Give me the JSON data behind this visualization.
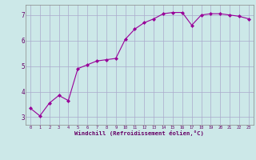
{
  "x": [
    0,
    1,
    2,
    3,
    4,
    5,
    6,
    7,
    8,
    9,
    10,
    11,
    12,
    13,
    14,
    15,
    16,
    17,
    18,
    19,
    20,
    21,
    22,
    23
  ],
  "y": [
    3.35,
    3.05,
    3.55,
    3.85,
    3.65,
    4.9,
    5.05,
    5.2,
    5.25,
    5.3,
    6.05,
    6.45,
    6.7,
    6.85,
    7.05,
    7.1,
    7.1,
    6.6,
    7.0,
    7.05,
    7.05,
    7.0,
    6.95,
    6.85
  ],
  "line_color": "#990099",
  "marker": "D",
  "markersize": 2.0,
  "linewidth": 0.8,
  "bg_color": "#cce8e8",
  "grid_color": "#aaaacc",
  "xlabel": "Windchill (Refroidissement éolien,°C)",
  "xlabel_color": "#660066",
  "tick_color": "#660066",
  "xlim": [
    -0.5,
    23.5
  ],
  "ylim": [
    2.7,
    7.4
  ],
  "yticks": [
    3,
    4,
    5,
    6,
    7
  ],
  "xticks": [
    0,
    1,
    2,
    3,
    4,
    5,
    6,
    7,
    8,
    9,
    10,
    11,
    12,
    13,
    14,
    15,
    16,
    17,
    18,
    19,
    20,
    21,
    22,
    23
  ],
  "xtick_labels": [
    "0",
    "1",
    "2",
    "3",
    "4",
    "5",
    "6",
    "7",
    "8",
    "9",
    "10",
    "11",
    "12",
    "13",
    "14",
    "15",
    "16",
    "17",
    "18",
    "19",
    "20",
    "21",
    "22",
    "23"
  ]
}
